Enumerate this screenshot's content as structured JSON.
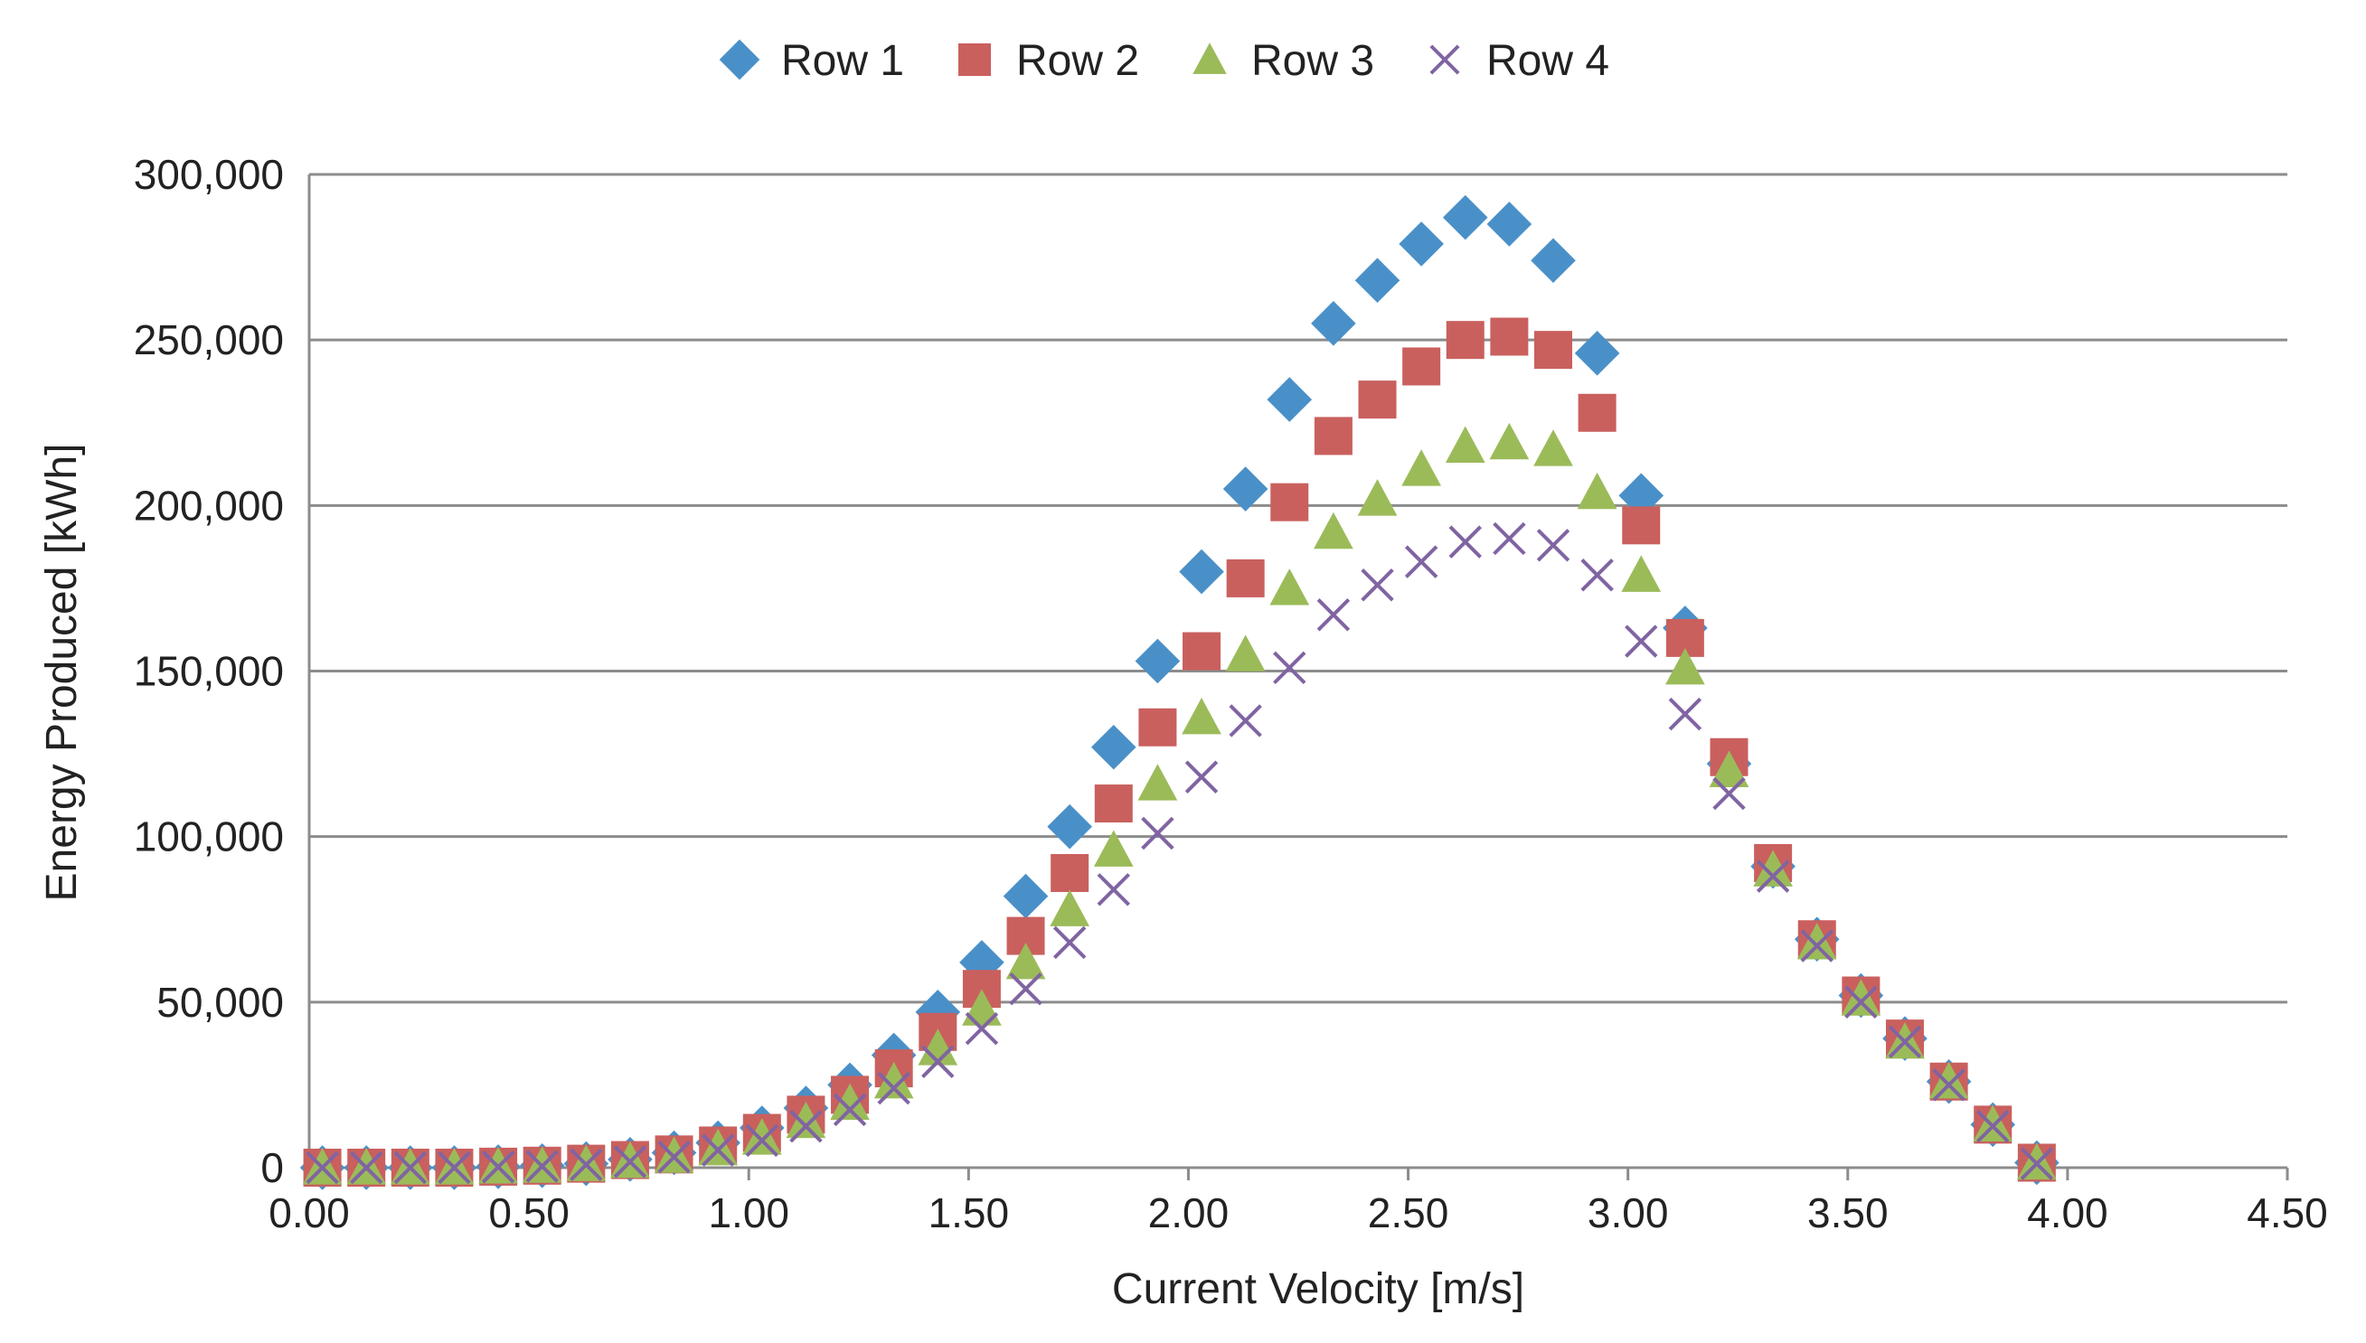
{
  "chart_data": {
    "type": "scatter",
    "title": "",
    "xlabel": "Current Velocity [m/s]",
    "ylabel": "Energy Produced [kWh]",
    "xlim": [
      0,
      4.5
    ],
    "ylim": [
      0,
      300000
    ],
    "x_ticks": [
      0,
      0.5,
      1.0,
      1.5,
      2.0,
      2.5,
      3.0,
      3.5,
      4.0,
      4.5
    ],
    "x_tick_labels": [
      "0.00",
      "0.50",
      "1.00",
      "1.50",
      "2.00",
      "2.50",
      "3.00",
      "3.50",
      "4.00",
      "4.50"
    ],
    "y_ticks": [
      0,
      50000,
      100000,
      150000,
      200000,
      250000,
      300000
    ],
    "y_tick_labels": [
      "0",
      "50,000",
      "100,000",
      "150,000",
      "200,000",
      "250,000",
      "300,000"
    ],
    "grid": true,
    "legend_position": "top-center",
    "x": [
      0.03,
      0.13,
      0.23,
      0.33,
      0.43,
      0.53,
      0.63,
      0.73,
      0.83,
      0.93,
      1.03,
      1.13,
      1.23,
      1.33,
      1.43,
      1.53,
      1.63,
      1.73,
      1.83,
      1.93,
      2.03,
      2.13,
      2.23,
      2.33,
      2.43,
      2.53,
      2.63,
      2.73,
      2.83,
      2.93,
      3.03,
      3.13,
      3.23,
      3.33,
      3.43,
      3.53,
      3.63,
      3.73,
      3.83,
      3.93
    ],
    "series": [
      {
        "name": "Row 1",
        "marker": "diamond",
        "color": "#4A90C8",
        "values": [
          0,
          0,
          0,
          0,
          300,
          600,
          1200,
          2500,
          4500,
          7500,
          12000,
          18000,
          25000,
          34000,
          47000,
          62000,
          82000,
          103000,
          127000,
          153000,
          180000,
          205000,
          232000,
          255000,
          268000,
          279000,
          287000,
          285000,
          274000,
          246000,
          203000,
          163000,
          122000,
          91000,
          69000,
          52000,
          39000,
          26000,
          13000,
          1500
        ]
      },
      {
        "name": "Row 2",
        "marker": "square",
        "color": "#C9605E",
        "values": [
          0,
          0,
          0,
          0,
          300,
          600,
          1200,
          2300,
          4000,
          6700,
          10500,
          16000,
          22000,
          30000,
          41000,
          54000,
          70000,
          89000,
          110000,
          133000,
          156000,
          178000,
          201000,
          221000,
          232000,
          242000,
          250000,
          251000,
          247000,
          228000,
          194000,
          160000,
          124000,
          92000,
          69000,
          52000,
          39000,
          26000,
          13000,
          1500
        ]
      },
      {
        "name": "Row 3",
        "marker": "triangle",
        "color": "#9BBB59",
        "values": [
          0,
          0,
          0,
          0,
          300,
          500,
          1000,
          2000,
          3500,
          5800,
          9000,
          14000,
          19500,
          26000,
          36000,
          48000,
          62000,
          78000,
          96000,
          116000,
          136000,
          155000,
          175000,
          192000,
          202000,
          211000,
          218000,
          219000,
          217000,
          204000,
          179000,
          151000,
          120000,
          90000,
          68000,
          51000,
          38000,
          26000,
          13000,
          1500
        ]
      },
      {
        "name": "Row 4",
        "marker": "x",
        "color": "#8064A2",
        "values": [
          0,
          0,
          0,
          0,
          200,
          400,
          900,
          1800,
          3200,
          5300,
          8200,
          12500,
          17500,
          24000,
          32000,
          42000,
          54000,
          68000,
          84000,
          101000,
          118000,
          135000,
          151000,
          167000,
          176000,
          183000,
          189000,
          190000,
          188000,
          179000,
          159000,
          137000,
          113000,
          88000,
          67000,
          50000,
          38000,
          25000,
          12500,
          1200
        ]
      }
    ]
  }
}
